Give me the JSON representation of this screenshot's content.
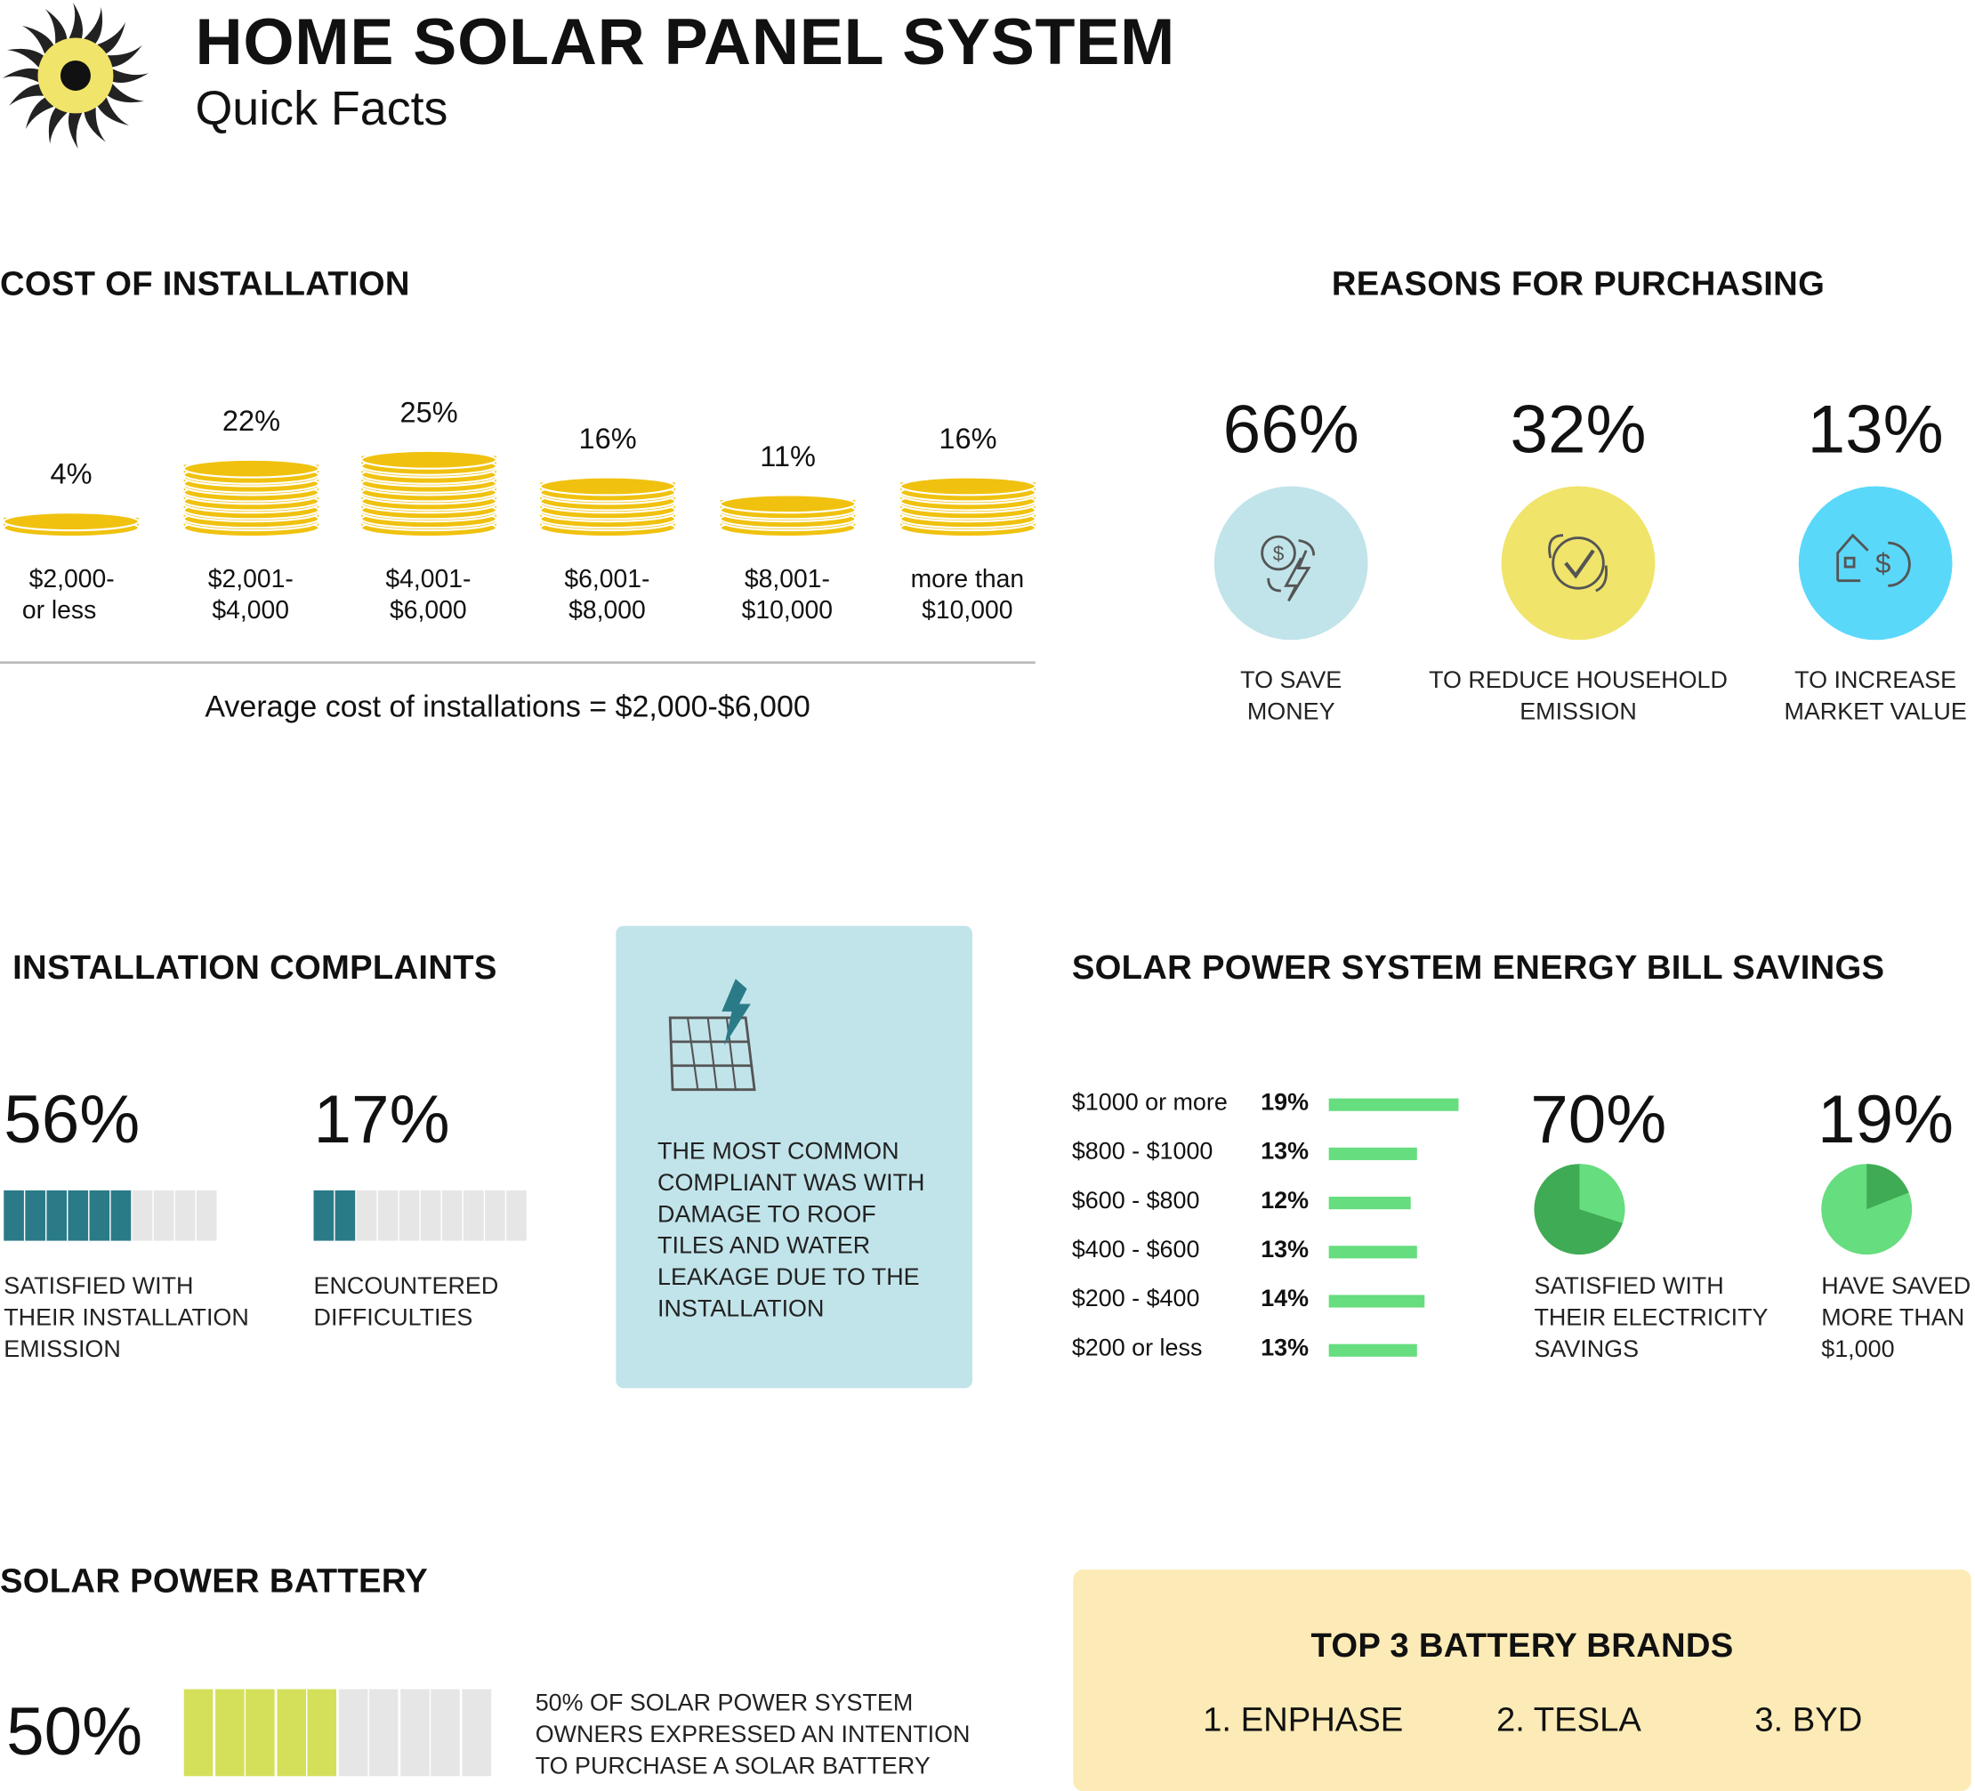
{
  "header": {
    "title": "HOME SOLAR PANEL SYSTEM",
    "subtitle": "Quick Facts",
    "logo_icon": "sun-icon"
  },
  "cost": {
    "title": "COST OF INSTALLATION",
    "items": [
      {
        "pct": "4%",
        "value": 4,
        "line1": "$2,000-",
        "line2": "or less"
      },
      {
        "pct": "22%",
        "value": 22,
        "line1": "$2,001-",
        "line2": "$4,000"
      },
      {
        "pct": "25%",
        "value": 25,
        "line1": "$4,001-",
        "line2": "$6,000"
      },
      {
        "pct": "16%",
        "value": 16,
        "line1": "$6,001-",
        "line2": "$8,000"
      },
      {
        "pct": "11%",
        "value": 11,
        "line1": "$8,001-",
        "line2": "$10,000"
      },
      {
        "pct": "16%",
        "value": 16,
        "line1": "more than",
        "line2": "$10,000"
      }
    ],
    "average": "Average  cost of installations = $2,000-$6,000",
    "coin_color": "#f0c20f"
  },
  "reasons": {
    "title": "REASONS FOR PURCHASING",
    "items": [
      {
        "pct": "66%",
        "line1": "TO SAVE",
        "line2": "MONEY",
        "icon": "money-energy-icon",
        "color": "#c1e4ea"
      },
      {
        "pct": "32%",
        "line1": "TO REDUCE HOUSEHOLD",
        "line2": "EMISSION",
        "icon": "eco-check-icon",
        "color": "#f0e46a"
      },
      {
        "pct": "13%",
        "line1": "TO INCREASE",
        "line2": "MARKET VALUE",
        "icon": "house-dollar-icon",
        "color": "#5ad8fa"
      }
    ]
  },
  "complaints": {
    "title": "INSTALLATION COMPLAINTS",
    "items": [
      {
        "pct": "56%",
        "filled_cells": 6,
        "lines": [
          "SATISFIED WITH",
          "THEIR INSTALLATION",
          "EMISSION"
        ]
      },
      {
        "pct": "17%",
        "filled_cells": 2,
        "lines": [
          "ENCOUNTERED",
          "DIFFICULTIES"
        ]
      }
    ],
    "fill_color": "#2a7b87",
    "note_lines": [
      "THE MOST COMMON",
      "COMPLIANT WAS WITH",
      "DAMAGE TO ROOF",
      "TILES AND WATER",
      "LEAKAGE DUE TO THE",
      "INSTALLATION"
    ]
  },
  "savings": {
    "title": "SOLAR POWER SYSTEM ENERGY BILL SAVINGS",
    "rows": [
      {
        "label": "$1000 or more",
        "pct": "19%",
        "value": 19
      },
      {
        "label": "$800 - $1000",
        "pct": "13%",
        "value": 13
      },
      {
        "label": "$600 - $800",
        "pct": "12%",
        "value": 12
      },
      {
        "label": "$400 - $600",
        "pct": "13%",
        "value": 13
      },
      {
        "label": "$200 - $400",
        "pct": "14%",
        "value": 14
      },
      {
        "label": "$200 or less",
        "pct": "13%",
        "value": 13
      }
    ],
    "pies": [
      {
        "pct": "70%",
        "value": 70,
        "lines": [
          "SATISFIED WITH",
          "THEIR ELECTRICITY",
          "SAVINGS"
        ]
      },
      {
        "pct": "19%",
        "value": 19,
        "lines": [
          "HAVE SAVED",
          "MORE THAN",
          "$1,000"
        ]
      }
    ],
    "dark_green": "#3fab54",
    "light_green": "#66dd7e"
  },
  "battery": {
    "title": "SOLAR POWER BATTERY",
    "pct": "50%",
    "filled_cells": 5,
    "fill_color": "#d4e05a",
    "lines": [
      "50% OF SOLAR POWER SYSTEM",
      "OWNERS EXPRESSED AN INTENTION",
      "TO PURCHASE A SOLAR BATTERY"
    ],
    "brands_title": "TOP 3 BATTERY BRANDS",
    "brands": [
      "1. ENPHASE",
      "2. TESLA",
      "3. BYD"
    ]
  }
}
